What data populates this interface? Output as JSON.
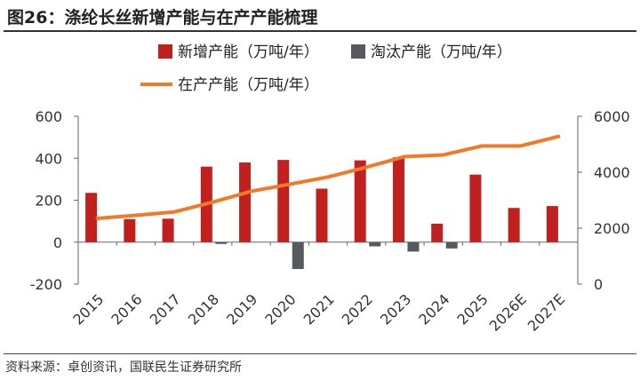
{
  "header": {
    "title": "图26：涤纶长丝新增产能与在产产能梳理"
  },
  "footer": {
    "source": "资料来源：卓创资讯，国联民生证券研究所"
  },
  "colors": {
    "new_capacity": "#C0201E",
    "eliminated_capacity": "#555A5F",
    "capacity_in_production": "#F07A28",
    "axis": "#666666"
  },
  "chart_data": {
    "type": "bar",
    "categories": [
      "2015",
      "2016",
      "2017",
      "2018",
      "2019",
      "2020",
      "2021",
      "2022",
      "2023",
      "2024",
      "2025",
      "2026E",
      "2027E"
    ],
    "series": [
      {
        "name": "新增产能（万吨/年）",
        "type": "bar",
        "axis": "left",
        "values": [
          235,
          110,
          112,
          360,
          380,
          392,
          255,
          390,
          405,
          88,
          322,
          163,
          172
        ]
      },
      {
        "name": "淘汰产能（万吨/年）",
        "type": "bar",
        "axis": "left",
        "values": [
          0,
          0,
          0,
          -5,
          0,
          -128,
          0,
          -20,
          -45,
          -30,
          0,
          0,
          0
        ]
      },
      {
        "name": "在产产能（万吨/年）",
        "type": "line",
        "axis": "right",
        "values": [
          2350,
          2460,
          2580,
          2930,
          3320,
          3570,
          3830,
          4180,
          4560,
          4620,
          4940,
          4940,
          5280
        ]
      }
    ],
    "y_left": {
      "ylim": [
        -200,
        600
      ],
      "ticks": [
        "-200",
        "0",
        "200",
        "400",
        "600"
      ]
    },
    "y_right": {
      "ylim": [
        0,
        6000
      ],
      "ticks": [
        "0",
        "2000",
        "4000",
        "6000"
      ]
    },
    "legend": "top-center",
    "grid": false
  }
}
